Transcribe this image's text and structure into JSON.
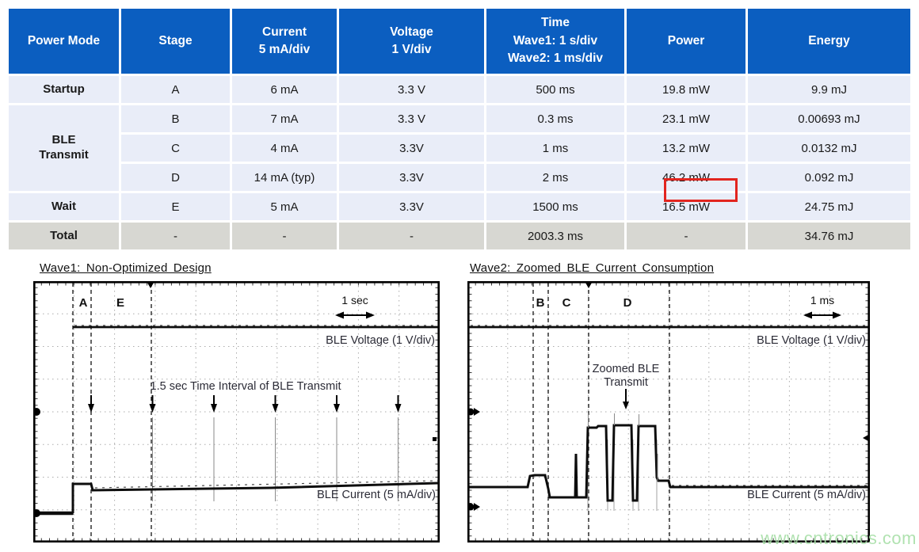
{
  "table": {
    "headers": [
      "Power Mode",
      "Stage",
      "Current\n5 mA/div",
      "Voltage\n1 V/div",
      "Time\nWave1: 1 s/div\nWave2: 1 ms/div",
      "Power",
      "Energy"
    ],
    "rows": [
      [
        "Startup",
        "A",
        "6 mA",
        "3.3 V",
        "500 ms",
        "19.8 mW",
        "9.9 mJ"
      ],
      [
        "BLE\nTransmit",
        "B",
        "7 mA",
        "3.3 V",
        "0.3 ms",
        "23.1 mW",
        "0.00693 mJ"
      ],
      [
        "",
        "C",
        "4 mA",
        "3.3V",
        "1 ms",
        "13.2 mW",
        "0.0132 mJ"
      ],
      [
        "",
        "D",
        "14 mA (typ)",
        "3.3V",
        "2 ms",
        "46.2 mW",
        "0.092 mJ"
      ],
      [
        "Wait",
        "E",
        "5 mA",
        "3.3V",
        "1500 ms",
        "16.5 mW",
        "24.75 mJ"
      ],
      [
        "Total",
        "-",
        "-",
        "-",
        "2003.3 ms",
        "-",
        "34.76 mJ"
      ]
    ]
  },
  "wave1": {
    "title": "Wave1: Non-Optimized Design",
    "stage_a": "A",
    "stage_e": "E",
    "scale": "1 sec",
    "voltage_label": "BLE Voltage (1 V/div)",
    "current_label": "BLE Current (5 mA/div)",
    "annotation": "1.5 sec Time Interval of BLE Transmit"
  },
  "wave2": {
    "title": "Wave2: Zoomed BLE Current Consumption",
    "stage_b": "B",
    "stage_c": "C",
    "stage_d": "D",
    "scale": "1 ms",
    "voltage_label": "BLE Voltage (1 V/div)",
    "current_label": "BLE Current (5 mA/div)",
    "annotation_line1": "Zoomed BLE",
    "annotation_line2": "Transmit"
  },
  "watermark": "www.cntronics.com",
  "colors": {
    "header_blue": "#0b5ec0",
    "row_blue": "#e9edf8",
    "total_gray": "#d7d7d2",
    "highlight_red": "#e2251f",
    "watermark_green": "#a8dfa8"
  }
}
